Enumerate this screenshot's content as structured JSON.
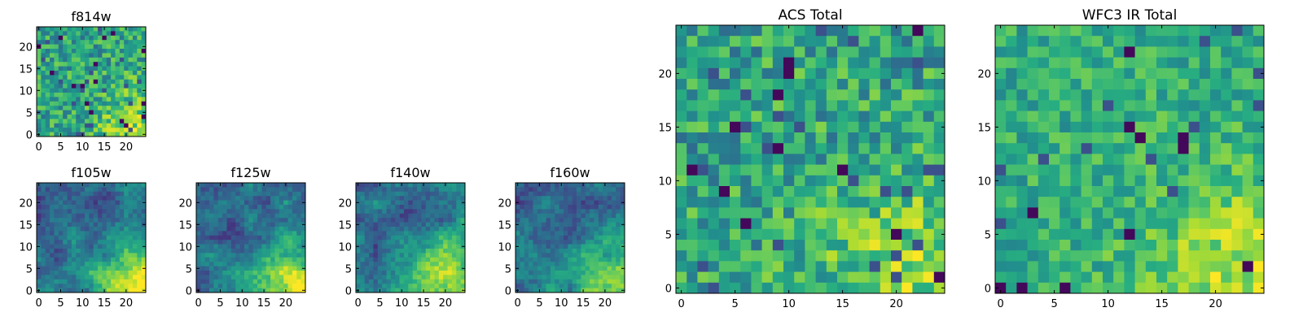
{
  "chart_data": [
    {
      "id": "f814w",
      "type": "heatmap",
      "title": "f814w",
      "grid_size": 25,
      "xlim": [
        0,
        24
      ],
      "ylim": [
        0,
        24
      ],
      "xticks": [
        "0",
        "5",
        "10",
        "15",
        "20"
      ],
      "yticks": [
        "0",
        "5",
        "10",
        "15",
        "20"
      ],
      "colormap": "viridis",
      "pattern": "noisy_high",
      "bright_corner": "bottom-right"
    },
    {
      "id": "f105w",
      "type": "heatmap",
      "title": "f105w",
      "grid_size": 25,
      "xlim": [
        0,
        24
      ],
      "ylim": [
        0,
        24
      ],
      "xticks": [
        "0",
        "5",
        "10",
        "15",
        "20"
      ],
      "yticks": [
        "0",
        "5",
        "10",
        "15",
        "20"
      ],
      "colormap": "viridis",
      "pattern": "smooth_gradient",
      "bright_corner": "bottom-right"
    },
    {
      "id": "f125w",
      "type": "heatmap",
      "title": "f125w",
      "grid_size": 25,
      "xlim": [
        0,
        24
      ],
      "ylim": [
        0,
        24
      ],
      "xticks": [
        "0",
        "5",
        "10",
        "15",
        "20"
      ],
      "yticks": [
        "0",
        "5",
        "10",
        "15",
        "20"
      ],
      "colormap": "viridis",
      "pattern": "smooth_gradient",
      "bright_corner": "bottom-right"
    },
    {
      "id": "f140w",
      "type": "heatmap",
      "title": "f140w",
      "grid_size": 25,
      "xlim": [
        0,
        24
      ],
      "ylim": [
        0,
        24
      ],
      "xticks": [
        "0",
        "5",
        "10",
        "15",
        "20"
      ],
      "yticks": [
        "0",
        "5",
        "10",
        "15",
        "20"
      ],
      "colormap": "viridis",
      "pattern": "smooth_gradient",
      "bright_corner": "bottom-right"
    },
    {
      "id": "f160w",
      "type": "heatmap",
      "title": "f160w",
      "grid_size": 25,
      "xlim": [
        0,
        24
      ],
      "ylim": [
        0,
        24
      ],
      "xticks": [
        "0",
        "5",
        "10",
        "15",
        "20"
      ],
      "yticks": [
        "0",
        "5",
        "10",
        "15",
        "20"
      ],
      "colormap": "viridis",
      "pattern": "smooth_gradient",
      "bright_corner": "bottom-right"
    },
    {
      "id": "acs_total",
      "type": "heatmap",
      "title": "ACS Total",
      "grid_size": 25,
      "xlim": [
        0,
        24
      ],
      "ylim": [
        0,
        24
      ],
      "xticks": [
        "0",
        "5",
        "10",
        "15",
        "20"
      ],
      "yticks": [
        "0",
        "5",
        "10",
        "15",
        "20"
      ],
      "colormap": "viridis",
      "pattern": "noisy_high",
      "bright_corner": "bottom-right"
    },
    {
      "id": "wfc3_ir_total",
      "type": "heatmap",
      "title": "WFC3 IR Total",
      "grid_size": 25,
      "xlim": [
        0,
        24
      ],
      "ylim": [
        0,
        24
      ],
      "xticks": [
        "0",
        "5",
        "10",
        "15",
        "20"
      ],
      "yticks": [
        "0",
        "5",
        "10",
        "15",
        "20"
      ],
      "colormap": "viridis",
      "pattern": "mostly_high",
      "bright_corner": "bottom-right"
    }
  ]
}
